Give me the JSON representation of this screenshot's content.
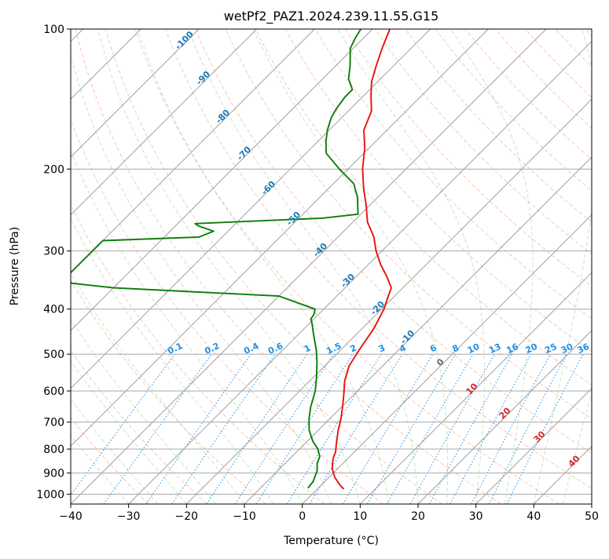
{
  "chart_data": {
    "type": "line",
    "title": "wetPf2_PAZ1.2024.239.11.55.G15",
    "xlabel": "Temperature (°C)",
    "ylabel": "Pressure (hPa)",
    "xlim": [
      -40,
      50
    ],
    "ylim": [
      1050,
      100
    ],
    "y_scale": "log",
    "grid": true,
    "x_ticks": [
      -40,
      -30,
      -20,
      -10,
      0,
      10,
      20,
      30,
      40,
      50
    ],
    "y_ticks": [
      100,
      200,
      300,
      400,
      500,
      600,
      700,
      800,
      900,
      1000
    ],
    "colors": {
      "temperature": "#e8120c",
      "dewpoint": "#0a7d0a",
      "mixing_ratio": "#1f8fe8",
      "dry_adiabat": "#1f77b4",
      "moist_adiabat": "#d62728"
    },
    "series": [
      {
        "color": "#e8120c",
        "points": [
          [
            4.6,
            975
          ],
          [
            3.5,
            960
          ],
          [
            1.0,
            920
          ],
          [
            -1.0,
            880
          ],
          [
            -2.5,
            840
          ],
          [
            -3.3,
            810
          ],
          [
            -4.5,
            780
          ],
          [
            -6.5,
            730
          ],
          [
            -8.0,
            690
          ],
          [
            -9.8,
            650
          ],
          [
            -11.8,
            610
          ],
          [
            -14.0,
            570
          ],
          [
            -15.8,
            530
          ],
          [
            -16.8,
            490
          ],
          [
            -18.0,
            440
          ],
          [
            -19.6,
            400
          ],
          [
            -20.8,
            380
          ],
          [
            -22.0,
            360
          ],
          [
            -24.8,
            340
          ],
          [
            -28.0,
            320
          ],
          [
            -31.0,
            300
          ],
          [
            -33.8,
            280
          ],
          [
            -37.5,
            260
          ],
          [
            -40.5,
            240
          ],
          [
            -44.0,
            220
          ],
          [
            -47.5,
            200
          ],
          [
            -50.8,
            180
          ],
          [
            -54.0,
            165
          ],
          [
            -56.0,
            150
          ],
          [
            -58.5,
            140
          ],
          [
            -61.0,
            130
          ],
          [
            -63.0,
            120
          ],
          [
            -65.0,
            110
          ],
          [
            -67.0,
            100
          ]
        ]
      },
      {
        "color": "#0a7d0a",
        "points": [
          [
            -1.8,
            970
          ],
          [
            -2.0,
            940
          ],
          [
            -2.6,
            915
          ],
          [
            -3.2,
            890
          ],
          [
            -4.4,
            860
          ],
          [
            -5.2,
            830
          ],
          [
            -6.8,
            800
          ],
          [
            -9.0,
            770
          ],
          [
            -11.5,
            730
          ],
          [
            -13.5,
            690
          ],
          [
            -15.3,
            650
          ],
          [
            -17.3,
            600
          ],
          [
            -19.5,
            560
          ],
          [
            -22.0,
            520
          ],
          [
            -24.2,
            490
          ],
          [
            -26.8,
            460
          ],
          [
            -29.5,
            430
          ],
          [
            -30.5,
            420
          ],
          [
            -30.8,
            410
          ],
          [
            -31.5,
            400
          ],
          [
            -40.0,
            375
          ],
          [
            -70.0,
            360
          ],
          [
            -80.0,
            350
          ],
          [
            -80.0,
            285
          ],
          [
            -64.0,
            280
          ],
          [
            -62.5,
            272
          ],
          [
            -66.0,
            265
          ],
          [
            -67.0,
            262
          ],
          [
            -46.0,
            255
          ],
          [
            -40.5,
            250
          ],
          [
            -43.5,
            230
          ],
          [
            -46.5,
            215
          ],
          [
            -51.5,
            200
          ],
          [
            -56.5,
            185
          ],
          [
            -58.5,
            175
          ],
          [
            -60.3,
            165
          ],
          [
            -61.8,
            155
          ],
          [
            -62.5,
            148
          ],
          [
            -63.0,
            140
          ],
          [
            -63.0,
            135
          ],
          [
            -65.5,
            128
          ],
          [
            -67.5,
            120
          ],
          [
            -70.5,
            110
          ],
          [
            -71.5,
            104
          ],
          [
            -72.0,
            100
          ]
        ]
      }
    ],
    "mixing_ratio_labels": [
      "0.1",
      "0.2",
      "0.4",
      "0.6",
      "1",
      "1.5",
      "2",
      "3",
      "4",
      "6",
      "8",
      "10",
      "13",
      "16",
      "20",
      "25",
      "30",
      "36"
    ],
    "dry_adiabat_labels": [
      "-100",
      "-90",
      "-80",
      "-70",
      "-60",
      "-50",
      "-40",
      "-30",
      "-20",
      "-10"
    ],
    "moist_adiabat_labels": [
      "0",
      "10",
      "20",
      "30",
      "40"
    ]
  }
}
